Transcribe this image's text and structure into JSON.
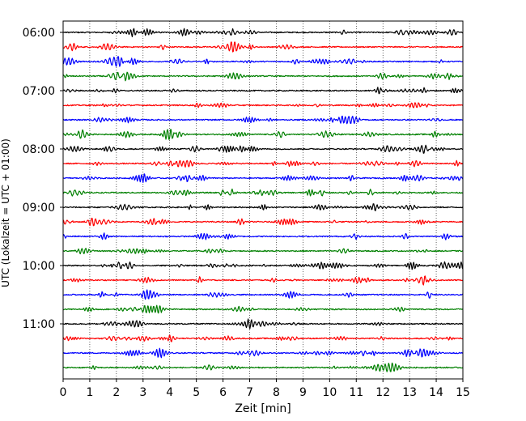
{
  "chart_data": {
    "type": "line",
    "xlabel": "Zeit  [min]",
    "ylabel": "UTC (Lokalzeit = UTC + 01:00)",
    "xlim": [
      0,
      15
    ],
    "x_ticks": [
      "0",
      "1",
      "2",
      "3",
      "4",
      "5",
      "6",
      "7",
      "8",
      "9",
      "10",
      "11",
      "12",
      "13",
      "14",
      "15"
    ],
    "y_tick_labels": [
      "06:00",
      "07:00",
      "08:00",
      "09:00",
      "10:00",
      "11:00"
    ],
    "vertical_grid": "dotted",
    "start_time": "06:00",
    "trace_interval_minutes": 15,
    "trace_count": 24,
    "trace_colors": [
      "#000000",
      "#ff0000",
      "#0000ff",
      "#008000"
    ],
    "note": "Helicorder-style seismogram: one 15-minute trace per row, colors cycling black, red, blue, green."
  }
}
